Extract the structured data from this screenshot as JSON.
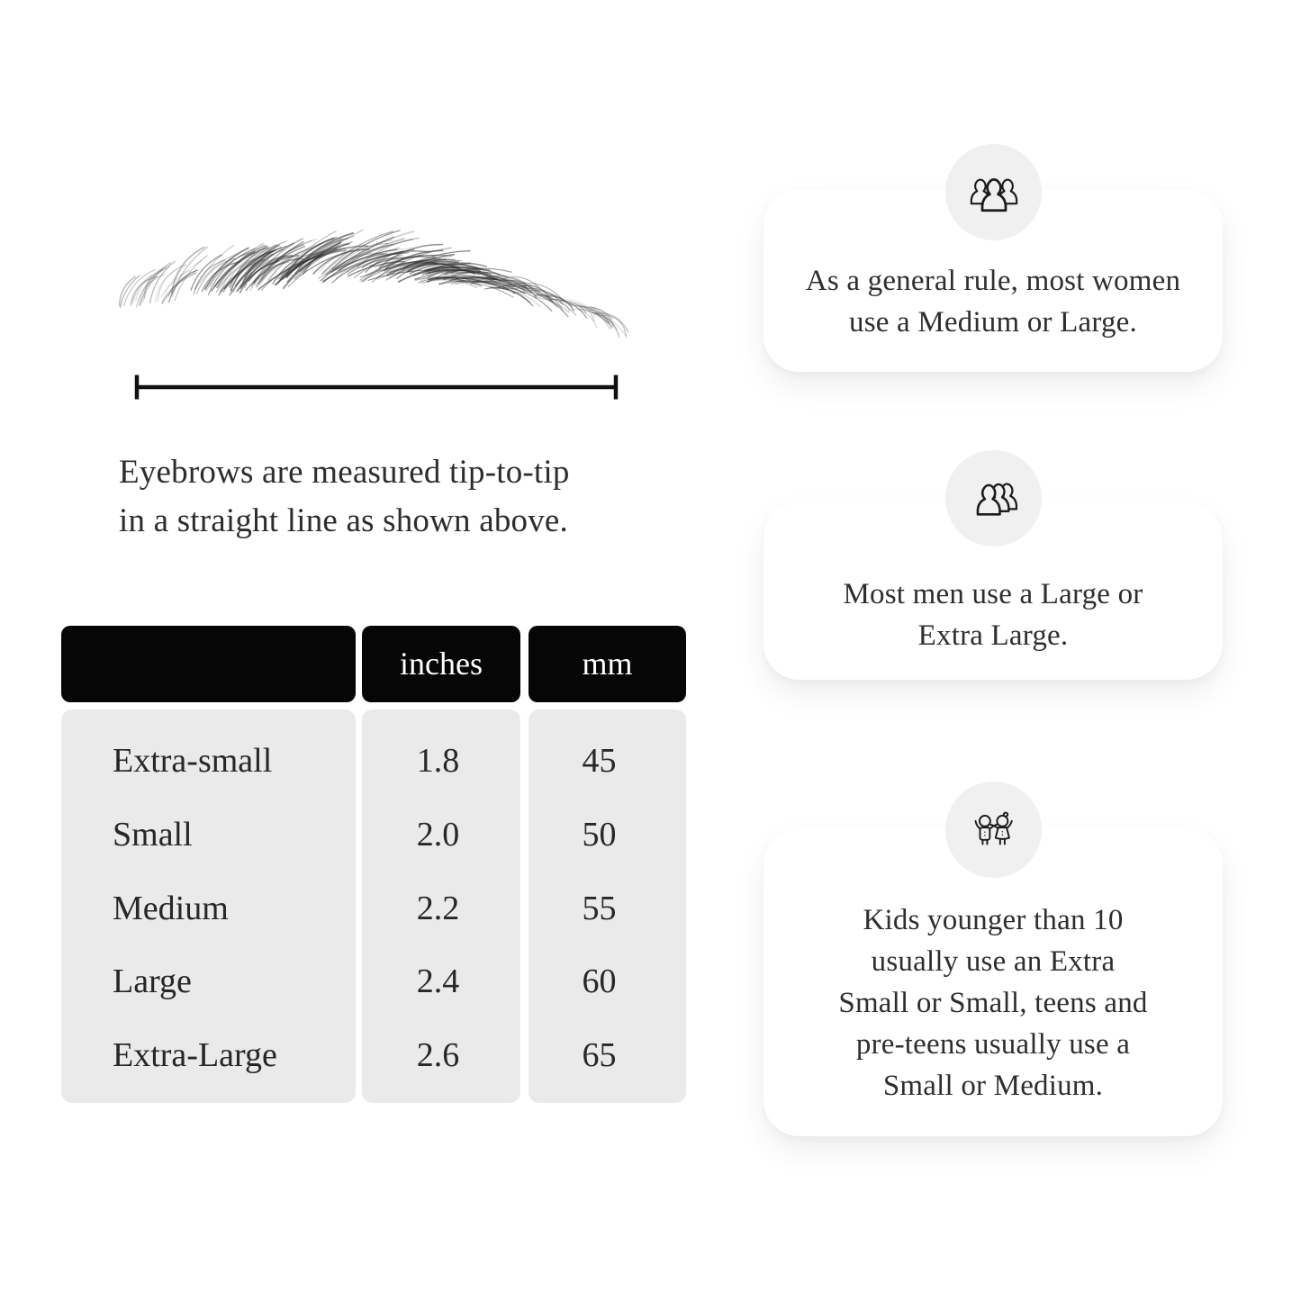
{
  "page": {
    "background": "#ffffff",
    "colors": {
      "table_header_bg": "#060606",
      "table_header_text": "#ffffff",
      "table_body_bg": "#eaeaea",
      "body_text": "#2d2d2d",
      "card_bg": "#ffffff",
      "icon_bubble_bg": "#f0f0f1",
      "icon_stroke": "#1c1c1c"
    }
  },
  "figure": {
    "illustration": "eyebrow-sketch",
    "measurement": "tip-to-tip-line",
    "caption_lines": [
      "Eyebrows are measured tip-to-tip",
      "in a straight line as shown above."
    ]
  },
  "table": {
    "headers": {
      "size": "",
      "inches": "inches",
      "mm": "mm"
    },
    "rows": [
      {
        "size": "Extra-small",
        "inches": "1.8",
        "mm": "45"
      },
      {
        "size": "Small",
        "inches": "2.0",
        "mm": "50"
      },
      {
        "size": "Medium",
        "inches": "2.2",
        "mm": "55"
      },
      {
        "size": "Large",
        "inches": "2.4",
        "mm": "60"
      },
      {
        "size": "Extra-Large",
        "inches": "2.6",
        "mm": "65"
      }
    ]
  },
  "cards": [
    {
      "icon": "women-group-icon",
      "lines": [
        "As a general rule, most women",
        "use a Medium or Large."
      ]
    },
    {
      "icon": "men-group-icon",
      "lines": [
        "Most men use a Large or",
        "Extra Large."
      ]
    },
    {
      "icon": "kids-icon",
      "lines": [
        "Kids younger than 10",
        "usually use an Extra",
        "Small or Small, teens and",
        "pre-teens usually use a",
        "Small or Medium."
      ]
    }
  ]
}
